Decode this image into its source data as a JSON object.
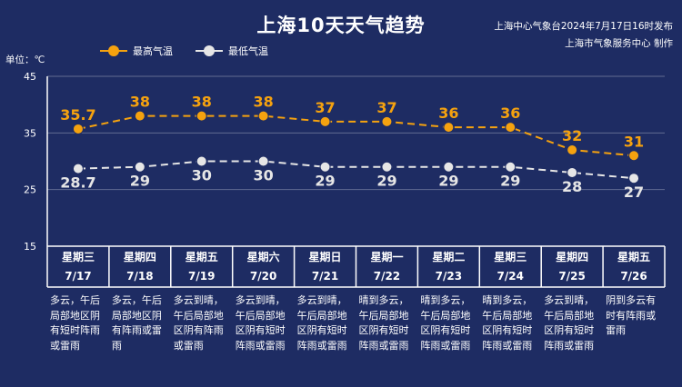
{
  "title": "上海10天天气趋势",
  "source_lines": [
    "上海中心气象台2024年7月17日16时发布",
    "上海市气象服务中心 制作"
  ],
  "unit_label": "单位：℃",
  "colors": {
    "background": "#1e2c63",
    "high": "#f5a20f",
    "low": "#e6e6e6",
    "grid": "#ffffff"
  },
  "chart_data": {
    "type": "line",
    "title": "上海10天天气趋势",
    "ylabel": "单位：℃",
    "ylim": [
      15,
      45
    ],
    "yticks": [
      15,
      25,
      35,
      45
    ],
    "legend": "top-left",
    "categories": [
      "7/17",
      "7/18",
      "7/19",
      "7/20",
      "7/21",
      "7/22",
      "7/23",
      "7/24",
      "7/25",
      "7/26"
    ],
    "weekdays": [
      "星期三",
      "星期四",
      "星期五",
      "星期六",
      "星期日",
      "星期一",
      "星期二",
      "星期三",
      "星期四",
      "星期五"
    ],
    "series": [
      {
        "name": "最高气温",
        "color": "#f5a20f",
        "values": [
          35.7,
          38,
          38,
          38,
          37,
          37,
          36,
          36,
          32,
          31
        ]
      },
      {
        "name": "最低气温",
        "color": "#e6e6e6",
        "values": [
          28.7,
          29,
          30,
          30,
          29,
          29,
          29,
          29,
          28,
          27
        ]
      }
    ],
    "descriptions": [
      [
        "多云，午后",
        "局部地区阴",
        "有短时阵雨",
        "或雷雨"
      ],
      [
        "多云，午后",
        "局部地区阴",
        "有阵雨或雷",
        "雨"
      ],
      [
        "多云到晴，",
        "午后局部地",
        "区阴有阵雨",
        "或雷雨"
      ],
      [
        "多云到晴，",
        "午后局部地",
        "区阴有短时",
        "阵雨或雷雨"
      ],
      [
        "多云到晴，",
        "午后局部地",
        "区阴有短时",
        "阵雨或雷雨"
      ],
      [
        "晴到多云，",
        "午后局部地",
        "区阴有短时",
        "阵雨或雷雨"
      ],
      [
        "晴到多云，",
        "午后局部地",
        "区阴有短时",
        "阵雨或雷雨"
      ],
      [
        "晴到多云，",
        "午后局部地",
        "区阴有短时",
        "阵雨或雷雨"
      ],
      [
        "多云到晴，",
        "午后局部地",
        "区阴有短时",
        "阵雨或雷雨"
      ],
      [
        "阴到多云有",
        "时有阵雨或",
        "雷雨"
      ]
    ]
  }
}
